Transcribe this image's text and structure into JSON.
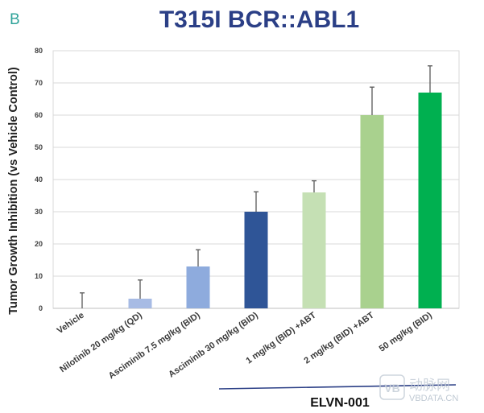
{
  "panel_letter": "B",
  "chart_data": {
    "type": "bar",
    "title": "T315I BCR::ABL1",
    "xlabel": "",
    "ylabel": "Tumor Growth Inhibition (vs Vehicle Control)",
    "ylim": [
      0,
      80
    ],
    "yticks": [
      0,
      10,
      20,
      30,
      40,
      50,
      60,
      70,
      80
    ],
    "grid": true,
    "legend": "none",
    "categories": [
      "Vehicle",
      "Nilotinib 20 mg/kg (QD)",
      "Asciminib 7.5 mg/kg (BID)",
      "Asciminib 30 mg/kg (BID)",
      "1 mg/kg (BID) +ABT",
      "2 mg/kg (BID) +ABT",
      "50 mg/kg (BID)"
    ],
    "values": [
      0,
      3,
      13,
      30,
      36,
      60,
      67
    ],
    "error_upper": [
      4.8,
      5.8,
      5.2,
      6.2,
      3.6,
      8.7,
      8.3
    ],
    "colors": [
      "#9db5e0",
      "#a7bbe4",
      "#8eabdd",
      "#2f5597",
      "#c5e0b4",
      "#a9d18e",
      "#00b050"
    ],
    "group_label": "ELVN-001",
    "group_members": [
      "1 mg/kg (BID) +ABT",
      "2 mg/kg (BID) +ABT",
      "50 mg/kg (BID)"
    ]
  },
  "colors": {
    "title": "#2b3f86",
    "panel_letter": "#2fa39a",
    "grid": "#d9d9d9",
    "error_bar": "#595959",
    "group_line": "#2b3f86"
  },
  "watermark": {
    "brand_cn": "动脉网",
    "site": "VBDATA.CN",
    "logo_text": "VB"
  }
}
